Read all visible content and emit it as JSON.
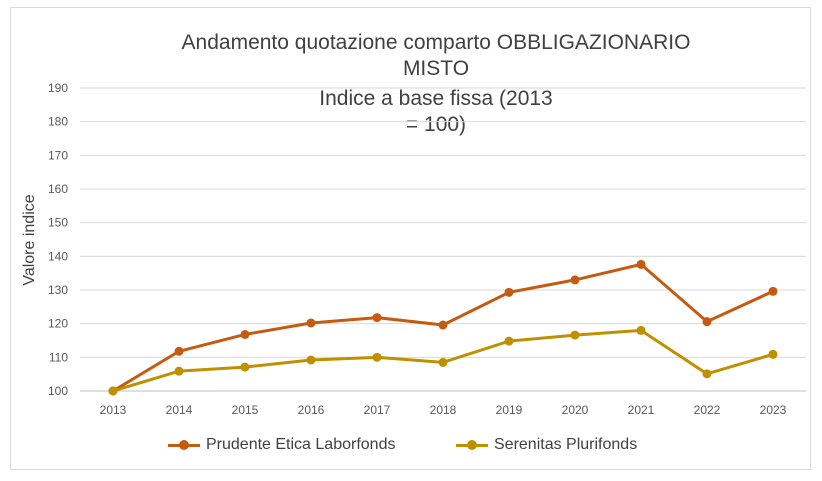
{
  "chart_data": {
    "type": "line",
    "title_lines": [
      "Andamento quotazione comparto OBBLIGAZIONARIO",
      "MISTO",
      "Indice a base fissa (2013",
      "= 100)"
    ],
    "xlabel": "",
    "ylabel": "Valore indice",
    "ylim": [
      100,
      190
    ],
    "yticks": [
      "100",
      "110",
      "120",
      "130",
      "140",
      "150",
      "160",
      "170",
      "180",
      "190"
    ],
    "categories": [
      "2013",
      "2014",
      "2015",
      "2016",
      "2017",
      "2018",
      "2019",
      "2020",
      "2021",
      "2022",
      "2023"
    ],
    "grid": true,
    "legend_position": "bottom",
    "series": [
      {
        "name": "Prudente Etica Laborfonds",
        "color": "#c55a11",
        "values": [
          100,
          111.8,
          116.8,
          120.2,
          121.8,
          119.6,
          129.3,
          133.0,
          137.6,
          120.6,
          129.6
        ]
      },
      {
        "name": "Serenitas Plurifonds",
        "color": "#bf9000",
        "values": [
          100,
          105.9,
          107.1,
          109.2,
          110.0,
          108.5,
          114.8,
          116.6,
          118.0,
          105.1,
          110.9
        ]
      }
    ]
  }
}
